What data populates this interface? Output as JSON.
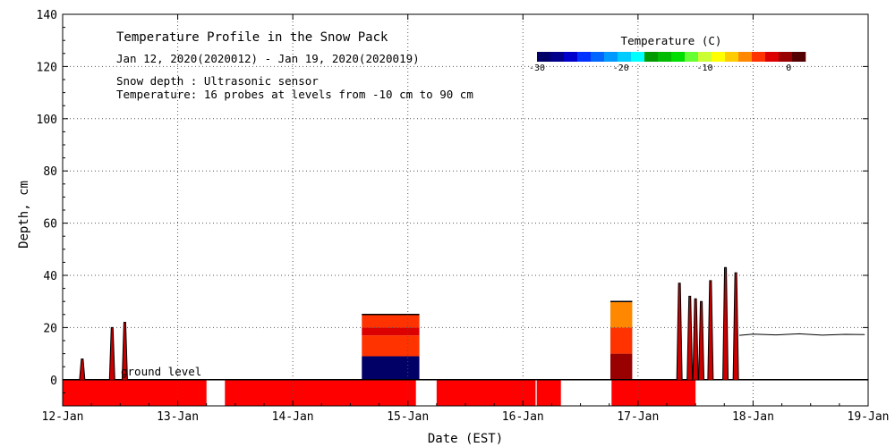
{
  "chart_data": {
    "type": "area",
    "title": "Temperature Profile in the Snow Pack",
    "subtitle": "Jan 12, 2020(2020012) - Jan 19, 2020(2020019)",
    "notes": [
      "Snow depth : Ultrasonic sensor",
      "Temperature: 16 probes at levels from -10 cm to 90 cm"
    ],
    "xlabel": "Date (EST)",
    "ylabel": "Depth, cm",
    "x_tick_labels": [
      "12-Jan",
      "13-Jan",
      "14-Jan",
      "15-Jan",
      "16-Jan",
      "17-Jan",
      "18-Jan",
      "19-Jan"
    ],
    "y_ticks": [
      0,
      20,
      40,
      60,
      80,
      100,
      120,
      140
    ],
    "xlim_days": [
      0,
      7
    ],
    "ylim": [
      -10,
      140
    ],
    "grid": true,
    "ground_label": "ground level",
    "colorbar": {
      "title": "Temperature (C)",
      "ticks": [
        -30,
        -20,
        -10,
        0
      ],
      "range": [
        -30,
        2
      ],
      "colors": [
        "#000066",
        "#00008b",
        "#0000cc",
        "#0033ff",
        "#0066ff",
        "#0099ff",
        "#00ccff",
        "#00ffff",
        "#009900",
        "#00bb00",
        "#00dd00",
        "#66ff33",
        "#ccff33",
        "#ffff00",
        "#ffcc00",
        "#ff8800",
        "#ff3300",
        "#dd0000",
        "#990000",
        "#550000"
      ]
    },
    "ground_temperature_band": {
      "depth_range": [
        -10,
        0
      ],
      "color": "#ff0000",
      "segments": [
        [
          0,
          1.25
        ],
        [
          1.41,
          3.07
        ],
        [
          3.25,
          4.11
        ],
        [
          4.12,
          4.33
        ],
        [
          4.77,
          5.5
        ]
      ]
    },
    "snow_depth_spikes": [
      {
        "x": 0.17,
        "y": 8
      },
      {
        "x": 0.43,
        "y": 20
      },
      {
        "x": 0.54,
        "y": 22
      },
      {
        "x": 5.36,
        "y": 37
      },
      {
        "x": 5.45,
        "y": 32
      },
      {
        "x": 5.5,
        "y": 31
      },
      {
        "x": 5.55,
        "y": 30
      },
      {
        "x": 5.63,
        "y": 38
      },
      {
        "x": 5.76,
        "y": 43
      },
      {
        "x": 5.85,
        "y": 41
      }
    ],
    "snow_profile_periods": [
      {
        "x_range": [
          2.6,
          3.1
        ],
        "top": 25,
        "layers": [
          {
            "from": 0,
            "to": 9,
            "temperature": -30
          },
          {
            "from": 9,
            "to": 17,
            "temperature": -4
          },
          {
            "from": 17,
            "to": 20,
            "temperature": -2
          },
          {
            "from": 20,
            "to": 25,
            "temperature": -3
          }
        ]
      },
      {
        "x_range": [
          4.76,
          4.95
        ],
        "top": 30,
        "layers": [
          {
            "from": 0,
            "to": 10,
            "temperature": 0
          },
          {
            "from": 10,
            "to": 20,
            "temperature": -4
          },
          {
            "from": 20,
            "to": 30,
            "temperature": -6
          }
        ]
      }
    ],
    "snow_depth_trace_late": [
      {
        "x": 5.88,
        "y": 17
      },
      {
        "x": 6.0,
        "y": 17.5
      },
      {
        "x": 6.2,
        "y": 17.2
      },
      {
        "x": 6.4,
        "y": 17.6
      },
      {
        "x": 6.6,
        "y": 17.1
      },
      {
        "x": 6.8,
        "y": 17.4
      },
      {
        "x": 6.97,
        "y": 17.3
      }
    ]
  }
}
